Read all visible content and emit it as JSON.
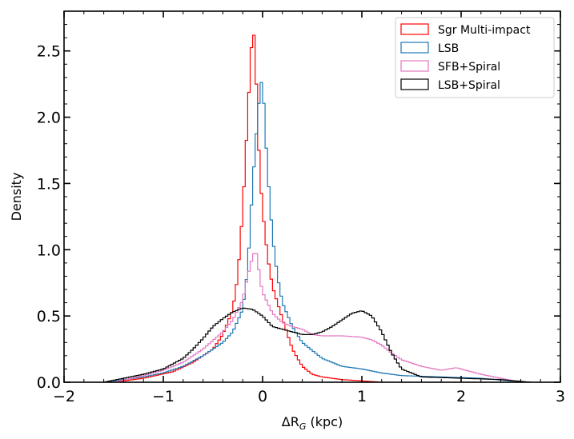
{
  "chart_data": {
    "type": "histogram",
    "title": "",
    "xlabel": "ΔR",
    "xlabel_sub": "G",
    "xlabel_unit": " (kpc)",
    "ylabel": "Density",
    "xlim": [
      -2,
      3
    ],
    "ylim": [
      0,
      2.8
    ],
    "x_ticks": [
      -2,
      -1,
      0,
      1,
      2,
      3
    ],
    "x_tick_labels": [
      "−2",
      "−1",
      "0",
      "1",
      "2",
      "3"
    ],
    "y_ticks": [
      0,
      0.5,
      1.0,
      1.5,
      2.0,
      2.5
    ],
    "y_tick_labels": [
      "0.0",
      "0.5",
      "1.0",
      "1.5",
      "2.0",
      "2.5"
    ],
    "legend_position": "top-right",
    "bin_width": 0.025,
    "series": [
      {
        "name": "Sgr Multi-impact",
        "color": "#ff0000",
        "x": [
          -1.5,
          -1.2,
          -0.9,
          -0.7,
          -0.5,
          -0.4,
          -0.3,
          -0.25,
          -0.2,
          -0.15,
          -0.12,
          -0.1,
          -0.08,
          -0.06,
          -0.03,
          0.0,
          0.05,
          0.1,
          0.15,
          0.2,
          0.3,
          0.4,
          0.5,
          0.6,
          0.8,
          1.0,
          1.2
        ],
        "y": [
          0.0,
          0.03,
          0.08,
          0.15,
          0.25,
          0.36,
          0.55,
          0.8,
          1.3,
          2.0,
          2.45,
          2.65,
          2.6,
          2.2,
          1.6,
          1.3,
          0.95,
          0.72,
          0.6,
          0.48,
          0.25,
          0.12,
          0.06,
          0.04,
          0.02,
          0.01,
          0.0
        ]
      },
      {
        "name": "LSB",
        "color": "#1f77b4",
        "x": [
          -1.6,
          -1.2,
          -1.0,
          -0.8,
          -0.6,
          -0.4,
          -0.3,
          -0.2,
          -0.15,
          -0.1,
          -0.05,
          -0.02,
          0.0,
          0.02,
          0.05,
          0.1,
          0.15,
          0.2,
          0.3,
          0.4,
          0.6,
          0.8,
          1.0,
          1.2,
          1.4,
          1.8,
          2.2,
          2.5,
          2.7
        ],
        "y": [
          0.0,
          0.04,
          0.07,
          0.12,
          0.2,
          0.3,
          0.38,
          0.55,
          0.85,
          1.5,
          2.0,
          2.25,
          2.28,
          2.0,
          1.6,
          1.1,
          0.8,
          0.6,
          0.42,
          0.3,
          0.18,
          0.12,
          0.1,
          0.07,
          0.05,
          0.04,
          0.03,
          0.01,
          0.0
        ]
      },
      {
        "name": "SFB+Spiral",
        "color": "#e377c2",
        "x": [
          -1.5,
          -1.2,
          -1.0,
          -0.8,
          -0.6,
          -0.4,
          -0.3,
          -0.2,
          -0.15,
          -0.1,
          -0.07,
          -0.05,
          -0.02,
          0.0,
          0.05,
          0.1,
          0.2,
          0.3,
          0.4,
          0.5,
          0.6,
          0.8,
          1.0,
          1.1,
          1.2,
          1.3,
          1.4,
          1.6,
          1.8,
          1.95,
          2.05,
          2.2,
          2.4,
          2.6
        ],
        "y": [
          0.0,
          0.05,
          0.09,
          0.15,
          0.25,
          0.38,
          0.47,
          0.62,
          0.8,
          0.95,
          1.0,
          0.92,
          0.75,
          0.68,
          0.6,
          0.52,
          0.45,
          0.42,
          0.4,
          0.36,
          0.35,
          0.35,
          0.34,
          0.32,
          0.28,
          0.22,
          0.17,
          0.12,
          0.09,
          0.11,
          0.09,
          0.06,
          0.03,
          0.0
        ]
      },
      {
        "name": "LSB+Spiral",
        "color": "#000000",
        "x": [
          -1.6,
          -1.4,
          -1.2,
          -1.0,
          -0.8,
          -0.7,
          -0.6,
          -0.5,
          -0.4,
          -0.3,
          -0.2,
          -0.1,
          0.0,
          0.1,
          0.2,
          0.3,
          0.4,
          0.5,
          0.6,
          0.7,
          0.8,
          0.9,
          1.0,
          1.1,
          1.2,
          1.3,
          1.4,
          1.6,
          2.0,
          2.4,
          2.7
        ],
        "y": [
          0.0,
          0.03,
          0.06,
          0.1,
          0.18,
          0.25,
          0.33,
          0.42,
          0.48,
          0.53,
          0.56,
          0.55,
          0.5,
          0.42,
          0.4,
          0.38,
          0.36,
          0.36,
          0.38,
          0.42,
          0.47,
          0.52,
          0.54,
          0.5,
          0.38,
          0.22,
          0.1,
          0.04,
          0.03,
          0.02,
          0.0
        ]
      }
    ]
  }
}
